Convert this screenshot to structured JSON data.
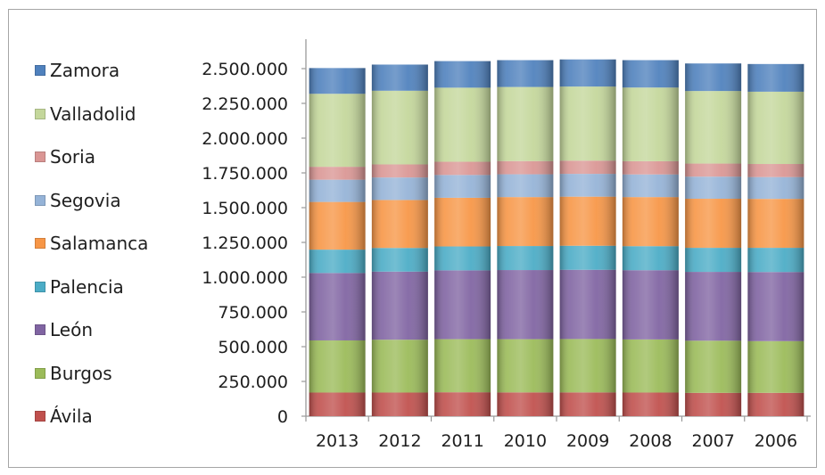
{
  "chart_data": {
    "type": "bar",
    "stacked": true,
    "categories": [
      "2013",
      "2012",
      "2011",
      "2010",
      "2009",
      "2008",
      "2007",
      "2006"
    ],
    "series": [
      {
        "name": "Ávila",
        "color": "#c0504d",
        "values": [
          170000,
          170000,
          172000,
          171000,
          171000,
          170000,
          168000,
          168000
        ]
      },
      {
        "name": "Burgos",
        "color": "#9bbb59",
        "values": [
          375000,
          380000,
          382000,
          383000,
          384000,
          382000,
          375000,
          372000
        ]
      },
      {
        "name": "León",
        "color": "#8064a2",
        "values": [
          485000,
          490000,
          495000,
          497000,
          498000,
          498000,
          495000,
          497000
        ]
      },
      {
        "name": "Palencia",
        "color": "#4bacc6",
        "values": [
          168000,
          170000,
          172000,
          173000,
          173000,
          173000,
          173000,
          174000
        ]
      },
      {
        "name": "Salamanca",
        "color": "#f79646",
        "values": [
          343000,
          345000,
          350000,
          352000,
          353000,
          353000,
          353000,
          352000
        ]
      },
      {
        "name": "Segovia",
        "color": "#95b3d7",
        "values": [
          160000,
          162000,
          164000,
          164000,
          164000,
          163000,
          159000,
          157000
        ]
      },
      {
        "name": "Soria",
        "color": "#da9694",
        "values": [
          93000,
          94000,
          95000,
          95000,
          95000,
          95000,
          94000,
          94000
        ]
      },
      {
        "name": "Valladolid",
        "color": "#c4d79b",
        "values": [
          525000,
          530000,
          533000,
          533000,
          533000,
          530000,
          522000,
          520000
        ]
      },
      {
        "name": "Zamora",
        "color": "#4f81bd",
        "values": [
          185000,
          188000,
          191000,
          193000,
          195000,
          197000,
          198000,
          199000
        ]
      }
    ],
    "yticks": [
      "0",
      "250.000",
      "500.000",
      "750.000",
      "1.000.000",
      "1.250.000",
      "1.500.000",
      "1.750.000",
      "2.000.000",
      "2.250.000",
      "2.500.000"
    ],
    "ylim": [
      0,
      2500000
    ],
    "legend_position": "left",
    "grid": false,
    "title": "",
    "xlabel": "",
    "ylabel": ""
  }
}
